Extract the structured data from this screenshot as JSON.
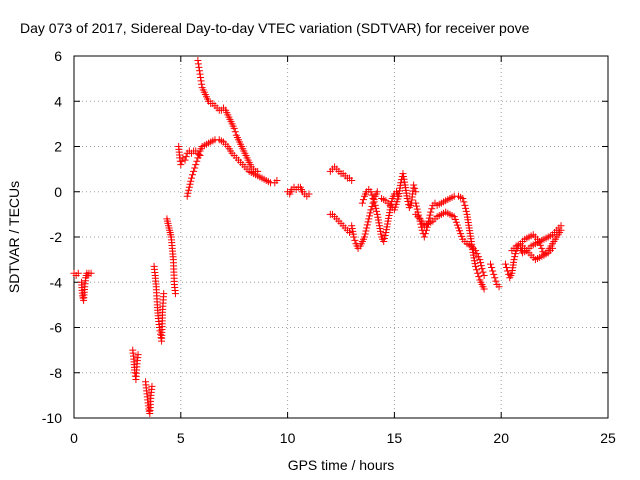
{
  "chart_data": {
    "type": "scatter",
    "title": "Day 073 of 2017, Sidereal Day-to-day VTEC variation (SDTVAR) for receiver pove",
    "xlabel": "GPS time / hours",
    "ylabel": "SDTVAR / TECUs",
    "xlim": [
      0,
      25
    ],
    "ylim": [
      -10,
      6
    ],
    "xticks": [
      0,
      5,
      10,
      15,
      20,
      25
    ],
    "yticks": [
      -10,
      -8,
      -6,
      -4,
      -2,
      0,
      2,
      4,
      6
    ],
    "grid": true,
    "marker": "+",
    "color": "#ff0000",
    "series": [
      {
        "name": "SDTVAR",
        "segments": [
          [
            [
              0.0,
              -3.6
            ],
            [
              0.1,
              -3.7
            ],
            [
              0.2,
              -3.6
            ]
          ],
          [
            [
              0.35,
              -4.0
            ],
            [
              0.4,
              -4.6
            ],
            [
              0.45,
              -4.8
            ],
            [
              0.5,
              -4.2
            ],
            [
              0.55,
              -3.8
            ],
            [
              0.6,
              -3.6
            ],
            [
              0.65,
              -3.7
            ],
            [
              0.7,
              -3.6
            ],
            [
              0.8,
              -3.6
            ]
          ],
          [
            [
              2.75,
              -7.0
            ],
            [
              2.8,
              -7.4
            ],
            [
              2.85,
              -8.0
            ],
            [
              2.9,
              -8.3
            ],
            [
              2.95,
              -7.6
            ],
            [
              3.0,
              -7.2
            ]
          ],
          [
            [
              3.35,
              -8.4
            ],
            [
              3.4,
              -8.8
            ],
            [
              3.45,
              -9.2
            ],
            [
              3.5,
              -9.6
            ],
            [
              3.55,
              -9.8
            ],
            [
              3.6,
              -9.0
            ],
            [
              3.65,
              -8.6
            ]
          ],
          [
            [
              3.75,
              -3.3
            ],
            [
              3.8,
              -3.7
            ],
            [
              3.85,
              -4.2
            ],
            [
              3.9,
              -5.0
            ],
            [
              3.95,
              -5.6
            ],
            [
              4.0,
              -6.0
            ],
            [
              4.05,
              -6.3
            ],
            [
              4.1,
              -6.6
            ],
            [
              4.15,
              -5.2
            ],
            [
              4.2,
              -4.5
            ]
          ],
          [
            [
              4.35,
              -1.2
            ],
            [
              4.4,
              -1.4
            ],
            [
              4.45,
              -1.6
            ],
            [
              4.5,
              -1.8
            ],
            [
              4.55,
              -2.0
            ],
            [
              4.6,
              -2.5
            ],
            [
              4.65,
              -3.0
            ],
            [
              4.7,
              -4.1
            ],
            [
              4.75,
              -4.5
            ]
          ],
          [
            [
              4.9,
              2.0
            ],
            [
              4.95,
              1.5
            ],
            [
              5.0,
              1.2
            ],
            [
              5.1,
              1.5
            ],
            [
              5.2,
              1.4
            ],
            [
              5.3,
              1.7
            ],
            [
              5.4,
              1.8
            ],
            [
              5.5,
              1.7
            ],
            [
              5.6,
              1.8
            ],
            [
              5.7,
              1.8
            ],
            [
              5.8,
              1.7
            ],
            [
              5.9,
              1.6
            ]
          ],
          [
            [
              5.3,
              -0.2
            ],
            [
              5.4,
              0.2
            ],
            [
              5.5,
              0.6
            ],
            [
              5.6,
              0.9
            ],
            [
              5.7,
              1.2
            ],
            [
              5.8,
              1.5
            ],
            [
              5.9,
              1.8
            ],
            [
              6.0,
              2.0
            ],
            [
              6.2,
              2.1
            ],
            [
              6.4,
              2.2
            ],
            [
              6.6,
              2.3
            ],
            [
              6.8,
              2.3
            ],
            [
              7.0,
              2.2
            ],
            [
              7.2,
              2.0
            ],
            [
              7.4,
              1.7
            ],
            [
              7.6,
              1.5
            ],
            [
              7.8,
              1.3
            ],
            [
              8.0,
              1.1
            ],
            [
              8.2,
              0.9
            ],
            [
              8.4,
              0.8
            ],
            [
              8.6,
              0.7
            ],
            [
              8.8,
              0.6
            ],
            [
              9.0,
              0.5
            ],
            [
              9.2,
              0.4
            ],
            [
              9.4,
              0.4
            ],
            [
              9.5,
              0.5
            ]
          ],
          [
            [
              5.8,
              5.8
            ],
            [
              5.85,
              5.5
            ],
            [
              5.9,
              5.2
            ],
            [
              5.95,
              4.9
            ],
            [
              6.0,
              4.6
            ],
            [
              6.1,
              4.4
            ],
            [
              6.2,
              4.2
            ],
            [
              6.3,
              4.0
            ],
            [
              6.4,
              3.9
            ],
            [
              6.5,
              3.9
            ],
            [
              6.6,
              3.8
            ],
            [
              6.7,
              3.7
            ],
            [
              6.8,
              3.6
            ],
            [
              6.9,
              3.6
            ],
            [
              7.0,
              3.7
            ],
            [
              7.1,
              3.6
            ],
            [
              7.2,
              3.4
            ],
            [
              7.3,
              3.2
            ],
            [
              7.4,
              3.0
            ],
            [
              7.5,
              2.8
            ],
            [
              7.6,
              2.5
            ],
            [
              7.7,
              2.3
            ],
            [
              7.8,
              2.1
            ],
            [
              7.9,
              1.9
            ],
            [
              8.0,
              1.7
            ],
            [
              8.1,
              1.5
            ],
            [
              8.2,
              1.3
            ],
            [
              8.3,
              1.1
            ],
            [
              8.4,
              1.0
            ],
            [
              8.5,
              0.9
            ],
            [
              8.6,
              0.9
            ]
          ],
          [
            [
              10.0,
              0.0
            ],
            [
              10.1,
              -0.1
            ],
            [
              10.2,
              0.1
            ],
            [
              10.3,
              0.2
            ],
            [
              10.4,
              0.1
            ],
            [
              10.5,
              0.2
            ],
            [
              10.6,
              0.2
            ],
            [
              10.7,
              0.0
            ],
            [
              10.8,
              -0.1
            ],
            [
              10.9,
              -0.2
            ],
            [
              11.0,
              -0.1
            ]
          ],
          [
            [
              12.0,
              0.9
            ],
            [
              12.1,
              1.0
            ],
            [
              12.2,
              1.1
            ],
            [
              12.3,
              1.0
            ],
            [
              12.4,
              0.9
            ],
            [
              12.5,
              0.8
            ],
            [
              12.6,
              0.8
            ],
            [
              12.7,
              0.7
            ],
            [
              12.8,
              0.6
            ],
            [
              12.9,
              0.6
            ],
            [
              13.0,
              0.5
            ]
          ],
          [
            [
              12.0,
              -1.0
            ],
            [
              12.1,
              -1.0
            ],
            [
              12.2,
              -1.1
            ],
            [
              12.3,
              -1.2
            ],
            [
              12.4,
              -1.3
            ],
            [
              12.5,
              -1.4
            ],
            [
              12.6,
              -1.5
            ],
            [
              12.7,
              -1.6
            ],
            [
              12.8,
              -1.7
            ],
            [
              12.9,
              -1.8
            ]
          ],
          [
            [
              13.0,
              -1.5
            ],
            [
              13.1,
              -2.0
            ],
            [
              13.2,
              -2.3
            ],
            [
              13.3,
              -2.5
            ],
            [
              13.4,
              -2.4
            ],
            [
              13.5,
              -2.2
            ],
            [
              13.6,
              -2.0
            ],
            [
              13.7,
              -1.6
            ],
            [
              13.8,
              -1.2
            ],
            [
              13.9,
              -0.8
            ],
            [
              14.0,
              -0.5
            ],
            [
              14.1,
              -0.2
            ],
            [
              14.2,
              0.0
            ]
          ],
          [
            [
              13.5,
              -0.5
            ],
            [
              13.6,
              -0.2
            ],
            [
              13.7,
              0.0
            ],
            [
              13.8,
              0.1
            ],
            [
              13.9,
              0.0
            ],
            [
              14.0,
              -0.3
            ],
            [
              14.1,
              -0.6
            ],
            [
              14.2,
              -1.0
            ],
            [
              14.3,
              -1.5
            ],
            [
              14.4,
              -2.0
            ],
            [
              14.5,
              -2.2
            ],
            [
              14.6,
              -1.8
            ],
            [
              14.7,
              -1.3
            ],
            [
              14.8,
              -0.8
            ],
            [
              14.9,
              -0.3
            ],
            [
              15.0,
              -0.1
            ],
            [
              15.1,
              0.0
            ],
            [
              15.2,
              -0.2
            ]
          ],
          [
            [
              14.4,
              -0.3
            ],
            [
              14.6,
              -0.4
            ],
            [
              14.8,
              -0.6
            ],
            [
              15.0,
              -0.8
            ],
            [
              15.2,
              -0.2
            ],
            [
              15.3,
              0.4
            ],
            [
              15.4,
              0.8
            ],
            [
              15.5,
              0.3
            ],
            [
              15.6,
              -0.3
            ],
            [
              15.7,
              -0.7
            ],
            [
              15.8,
              -0.5
            ],
            [
              15.9,
              0.3
            ],
            [
              16.0,
              0.0
            ]
          ],
          [
            [
              16.0,
              -0.5
            ],
            [
              16.1,
              -0.9
            ],
            [
              16.2,
              -1.3
            ],
            [
              16.3,
              -1.7
            ],
            [
              16.4,
              -2.0
            ],
            [
              16.5,
              -1.7
            ],
            [
              16.6,
              -1.3
            ],
            [
              16.7,
              -0.9
            ],
            [
              16.8,
              -0.6
            ],
            [
              16.9,
              -0.5
            ],
            [
              17.0,
              -0.6
            ],
            [
              17.2,
              -0.5
            ],
            [
              17.4,
              -0.4
            ],
            [
              17.6,
              -0.3
            ],
            [
              17.8,
              -0.2
            ],
            [
              18.0,
              -0.2
            ],
            [
              18.2,
              -0.3
            ],
            [
              18.3,
              -0.6
            ],
            [
              18.4,
              -1.0
            ],
            [
              18.5,
              -1.6
            ],
            [
              18.6,
              -2.2
            ],
            [
              18.7,
              -2.8
            ],
            [
              18.8,
              -3.3
            ],
            [
              18.9,
              -3.6
            ],
            [
              19.0,
              -3.9
            ],
            [
              19.1,
              -4.1
            ],
            [
              19.2,
              -4.3
            ]
          ],
          [
            [
              16.0,
              -1.0
            ],
            [
              16.2,
              -1.2
            ],
            [
              16.4,
              -1.5
            ],
            [
              16.6,
              -1.4
            ],
            [
              16.8,
              -1.3
            ],
            [
              17.0,
              -1.1
            ],
            [
              17.2,
              -1.0
            ],
            [
              17.4,
              -0.9
            ],
            [
              17.6,
              -1.0
            ],
            [
              17.8,
              -1.1
            ],
            [
              18.0,
              -1.6
            ],
            [
              18.2,
              -2.1
            ],
            [
              18.4,
              -2.3
            ],
            [
              18.6,
              -2.4
            ],
            [
              18.8,
              -2.6
            ],
            [
              19.0,
              -3.0
            ],
            [
              19.1,
              -3.4
            ],
            [
              19.2,
              -3.7
            ]
          ],
          [
            [
              19.5,
              -3.2
            ],
            [
              19.6,
              -3.5
            ],
            [
              19.7,
              -3.8
            ],
            [
              19.8,
              -4.1
            ],
            [
              19.9,
              -4.2
            ]
          ],
          [
            [
              20.2,
              -3.2
            ],
            [
              20.3,
              -3.5
            ],
            [
              20.4,
              -3.8
            ],
            [
              20.5,
              -3.6
            ],
            [
              20.6,
              -3.0
            ],
            [
              20.7,
              -2.6
            ],
            [
              20.8,
              -2.4
            ],
            [
              20.9,
              -2.5
            ],
            [
              21.0,
              -2.7
            ],
            [
              21.2,
              -2.6
            ],
            [
              21.4,
              -2.4
            ],
            [
              21.6,
              -2.3
            ],
            [
              21.8,
              -2.2
            ],
            [
              22.0,
              -2.1
            ],
            [
              22.2,
              -2.0
            ],
            [
              22.4,
              -1.9
            ],
            [
              22.6,
              -1.7
            ],
            [
              22.8,
              -1.5
            ]
          ],
          [
            [
              20.5,
              -2.6
            ],
            [
              20.7,
              -2.4
            ],
            [
              20.9,
              -2.3
            ],
            [
              21.1,
              -2.1
            ],
            [
              21.3,
              -2.0
            ],
            [
              21.5,
              -1.9
            ],
            [
              21.7,
              -2.1
            ],
            [
              21.9,
              -2.5
            ],
            [
              22.0,
              -2.8
            ],
            [
              22.2,
              -2.6
            ],
            [
              22.4,
              -2.3
            ],
            [
              22.6,
              -2.0
            ],
            [
              22.8,
              -1.7
            ]
          ],
          [
            [
              21.0,
              -2.4
            ],
            [
              21.2,
              -2.6
            ],
            [
              21.4,
              -2.8
            ],
            [
              21.6,
              -3.0
            ],
            [
              21.8,
              -2.9
            ],
            [
              22.0,
              -2.8
            ],
            [
              22.2,
              -2.7
            ],
            [
              22.4,
              -2.5
            ]
          ]
        ]
      }
    ]
  }
}
